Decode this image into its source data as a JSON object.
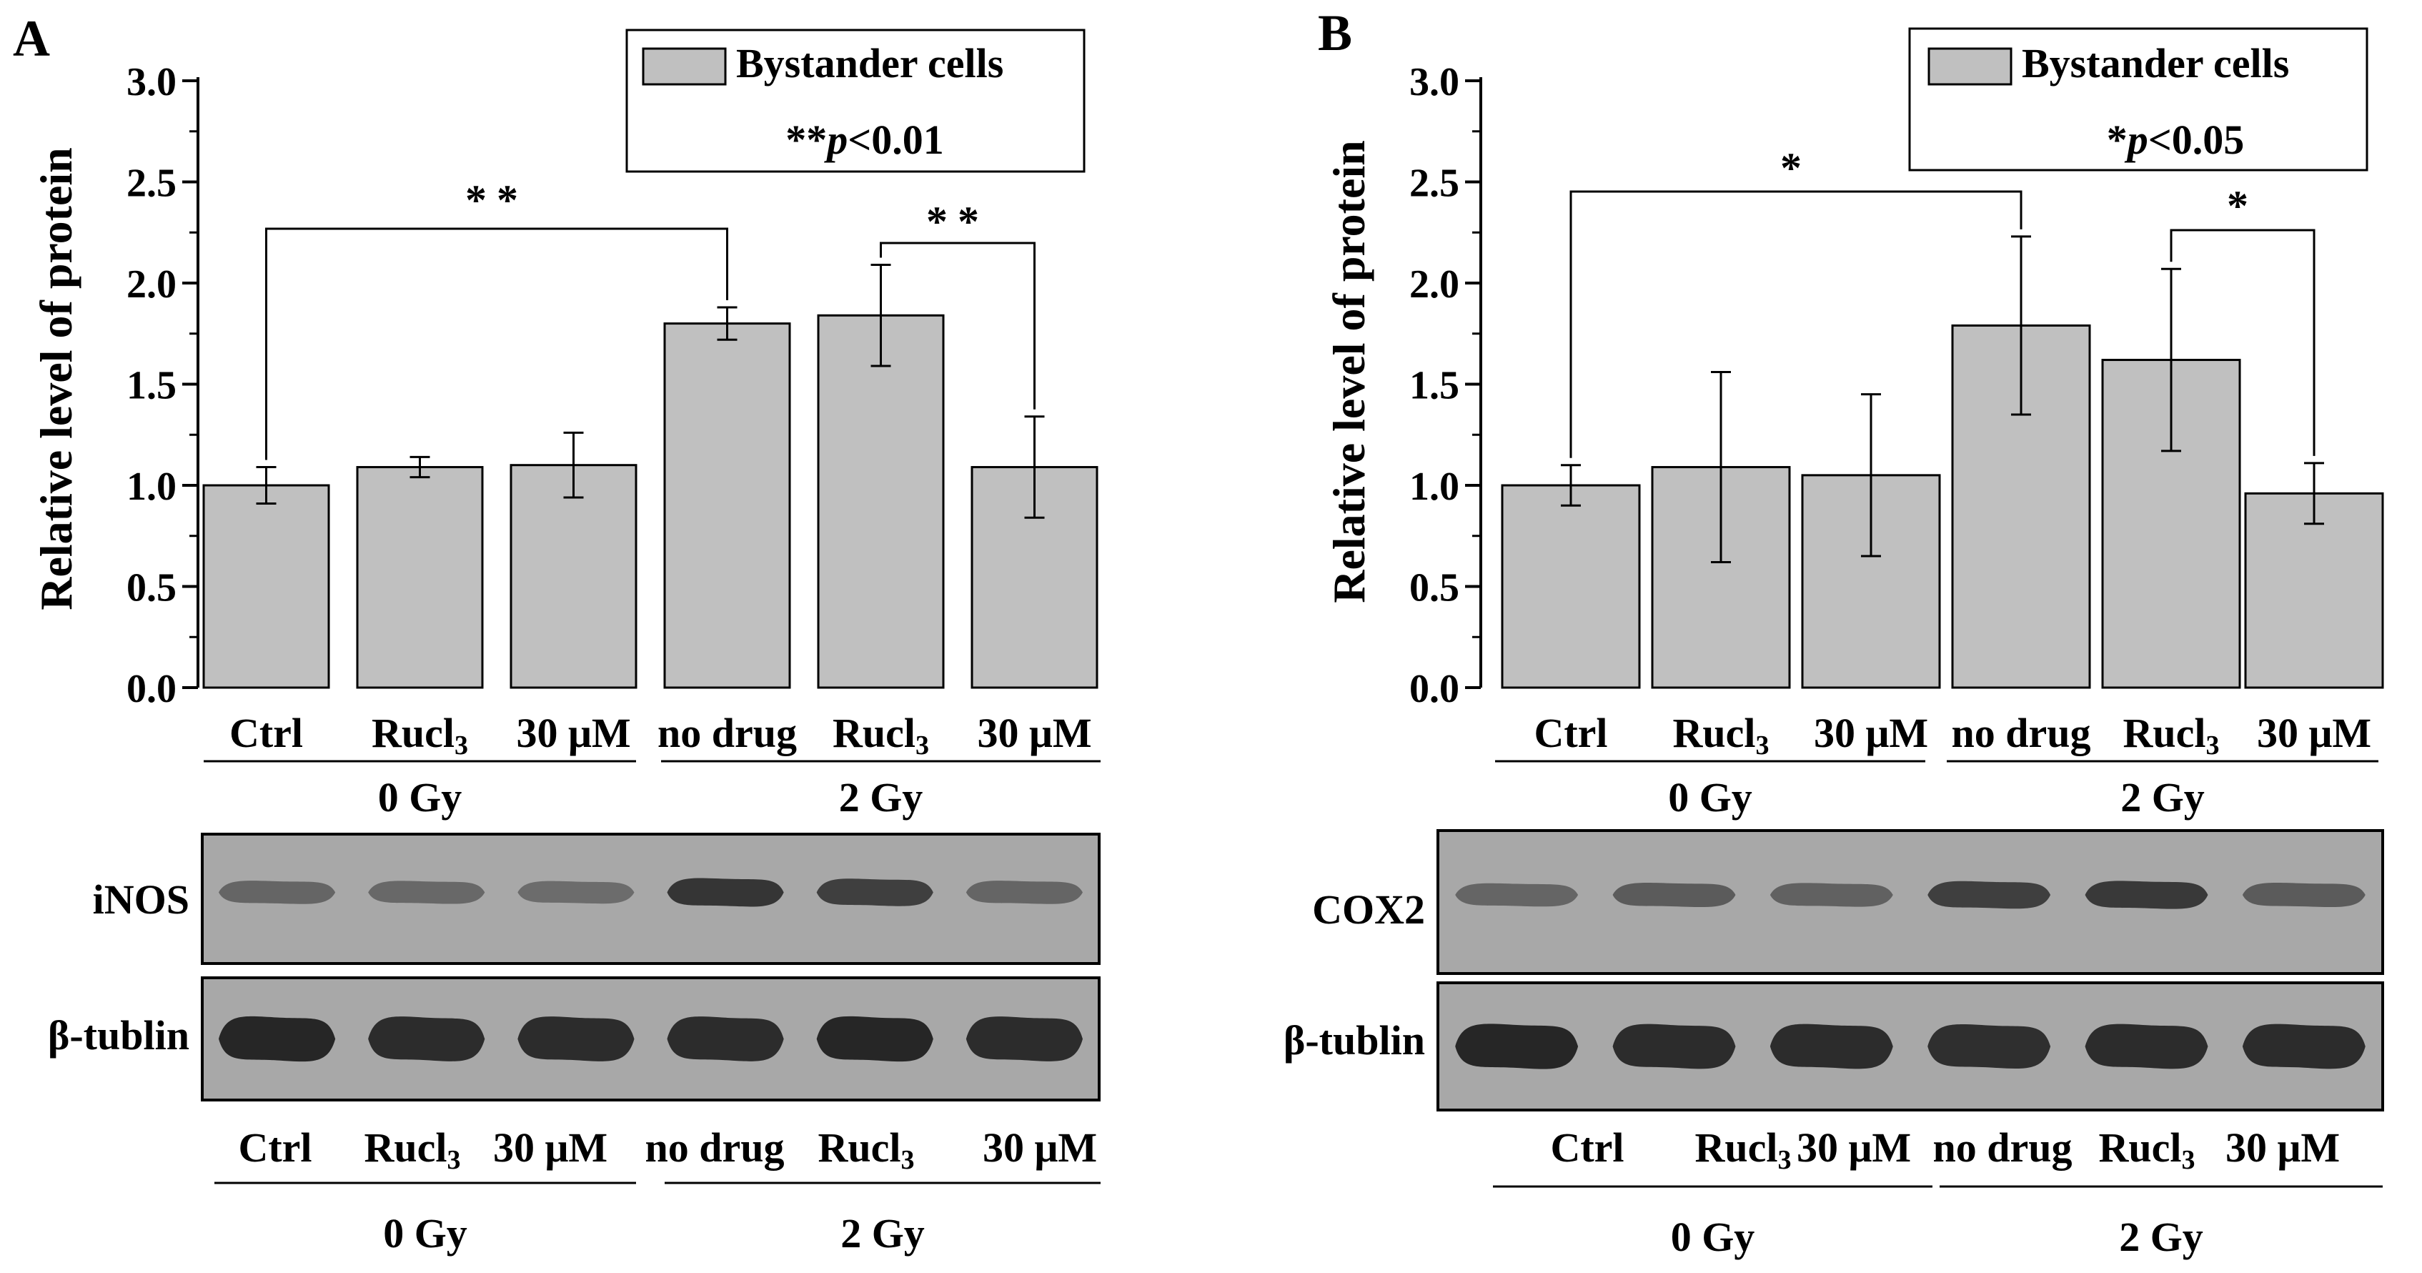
{
  "colors": {
    "bar": "#c0c0c0",
    "axis": "#000000",
    "blot_bg": "#a8a8a8",
    "band": "#262626"
  },
  "chart_data": [
    {
      "type": "bar",
      "panel": "A",
      "title": "",
      "xlabel": "",
      "ylabel": "Relative level of protein",
      "ylim": [
        0,
        3.0
      ],
      "yticks": [
        "0.0",
        "0.5",
        "1.0",
        "1.5",
        "2.0",
        "2.5",
        "3.0"
      ],
      "categories": [
        "Ctrl",
        "Rucl3",
        "30 μM",
        "no drug",
        "Rucl3",
        "30 μM"
      ],
      "category_display": [
        {
          "main": "Ctrl",
          "sub": ""
        },
        {
          "main": "Rucl",
          "sub": "3"
        },
        {
          "main": "30 μM",
          "sub": ""
        },
        {
          "main": "no drug",
          "sub": ""
        },
        {
          "main": "Rucl",
          "sub": "3"
        },
        {
          "main": "30 μM",
          "sub": ""
        }
      ],
      "groups": [
        {
          "label": "0 Gy",
          "from": 0,
          "to": 2
        },
        {
          "label": "2 Gy",
          "from": 3,
          "to": 5
        }
      ],
      "series": [
        {
          "name": "Bystander cells",
          "values": [
            1.0,
            1.09,
            1.1,
            1.8,
            1.84,
            1.09
          ],
          "errors": [
            0.09,
            0.05,
            0.16,
            0.08,
            0.25,
            0.25
          ]
        }
      ],
      "legend": {
        "entry": "Bystander cells",
        "sig_prefix": "**",
        "sig_p": "p",
        "sig_rest": "<0.01",
        "placement": "top-right"
      },
      "brackets": [
        {
          "from": 0,
          "to": 3,
          "label": "**"
        },
        {
          "from": 4,
          "to": 5,
          "label": "**"
        }
      ],
      "blot": {
        "rows": [
          {
            "label": "iNOS",
            "intensities": [
              0.35,
              0.32,
              0.28,
              0.85,
              0.75,
              0.35
            ]
          },
          {
            "label": "β-tublin",
            "intensities": [
              1.0,
              0.95,
              0.95,
              0.95,
              1.0,
              0.95
            ]
          }
        ],
        "lane_labels": [
          {
            "main": "Ctrl",
            "sub": ""
          },
          {
            "main": "Rucl",
            "sub": "3"
          },
          {
            "main": "30 μM",
            "sub": ""
          },
          {
            "main": "no drug",
            "sub": ""
          },
          {
            "main": "Rucl",
            "sub": "3"
          },
          {
            "main": "30 μM",
            "sub": ""
          }
        ],
        "groups": [
          {
            "label": "0 Gy",
            "from": 0,
            "to": 2
          },
          {
            "label": "2 Gy",
            "from": 3,
            "to": 5
          }
        ]
      }
    },
    {
      "type": "bar",
      "panel": "B",
      "title": "",
      "xlabel": "",
      "ylabel": "Relative level of protein",
      "ylim": [
        0,
        3.0
      ],
      "yticks": [
        "0.0",
        "0.5",
        "1.0",
        "1.5",
        "2.0",
        "2.5",
        "3.0"
      ],
      "categories": [
        "Ctrl",
        "Rucl3",
        "30 μM",
        "no drug",
        "Rucl3",
        "30 μM"
      ],
      "category_display": [
        {
          "main": "Ctrl",
          "sub": ""
        },
        {
          "main": "Rucl",
          "sub": "3"
        },
        {
          "main": "30 μM",
          "sub": ""
        },
        {
          "main": "no drug",
          "sub": ""
        },
        {
          "main": "Rucl",
          "sub": "3"
        },
        {
          "main": "30 μM",
          "sub": ""
        }
      ],
      "groups": [
        {
          "label": "0 Gy",
          "from": 0,
          "to": 2
        },
        {
          "label": "2 Gy",
          "from": 3,
          "to": 5
        }
      ],
      "series": [
        {
          "name": "Bystander cells",
          "values": [
            1.0,
            1.09,
            1.05,
            1.79,
            1.62,
            0.96
          ],
          "errors": [
            0.1,
            0.47,
            0.4,
            0.44,
            0.45,
            0.15
          ]
        }
      ],
      "legend": {
        "entry": "Bystander cells",
        "sig_prefix": "*",
        "sig_p": "p",
        "sig_rest": "<0.05",
        "placement": "top-right"
      },
      "brackets": [
        {
          "from": 0,
          "to": 3,
          "label": "*"
        },
        {
          "from": 4,
          "to": 5,
          "label": "*"
        }
      ],
      "blot": {
        "rows": [
          {
            "label": "COX2",
            "intensities": [
              0.35,
              0.45,
              0.4,
              0.75,
              0.8,
              0.45
            ]
          },
          {
            "label": "β-tublin",
            "intensities": [
              1.0,
              0.95,
              0.95,
              0.9,
              0.95,
              0.95
            ]
          }
        ],
        "lane_labels": [
          {
            "main": "Ctrl",
            "sub": ""
          },
          {
            "main": "Rucl",
            "sub": "3"
          },
          {
            "main": "30 μM",
            "sub": ""
          },
          {
            "main": "no drug",
            "sub": ""
          },
          {
            "main": "Rucl",
            "sub": "3"
          },
          {
            "main": "30 μM",
            "sub": ""
          }
        ],
        "groups": [
          {
            "label": "0 Gy",
            "from": 0,
            "to": 2
          },
          {
            "label": "2 Gy",
            "from": 3,
            "to": 5
          }
        ]
      }
    }
  ],
  "panels": [
    {
      "letter": "A"
    },
    {
      "letter": "B"
    }
  ]
}
